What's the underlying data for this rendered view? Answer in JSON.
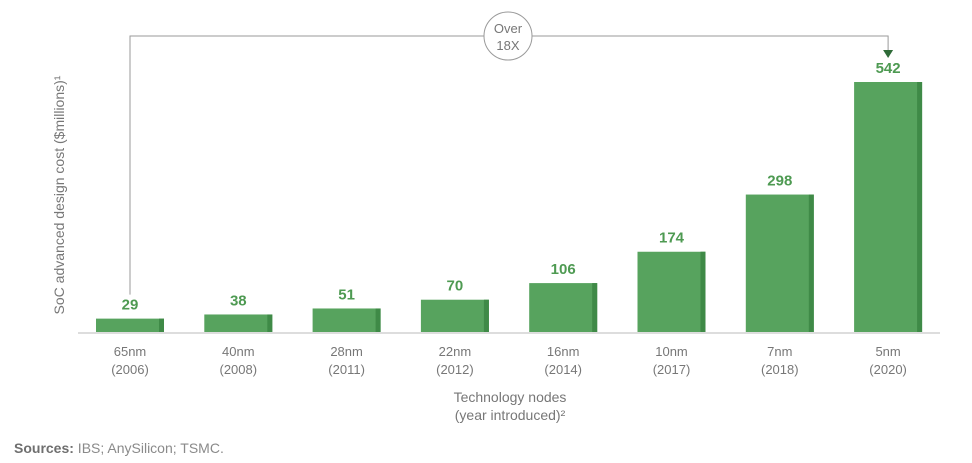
{
  "chart_data": {
    "type": "bar",
    "categories": [
      "65nm",
      "40nm",
      "28nm",
      "22nm",
      "16nm",
      "10nm",
      "7nm",
      "5nm"
    ],
    "category_years": [
      "(2006)",
      "(2008)",
      "(2011)",
      "(2012)",
      "(2014)",
      "(2017)",
      "(2018)",
      "(2020)"
    ],
    "values": [
      29,
      38,
      51,
      70,
      106,
      174,
      298,
      542
    ],
    "value_labels": [
      "29",
      "38",
      "51",
      "70",
      "106",
      "174",
      "298",
      "542"
    ],
    "ylabel": "SoC advanced design cost ($millions)¹",
    "xlabel_line1": "Technology nodes",
    "xlabel_line2": "(year introduced)²",
    "ylim": [
      0,
      542
    ],
    "annotation": {
      "line1": "Over",
      "line2": "18X",
      "from_category": "65nm",
      "to_category": "5nm"
    },
    "grid": false,
    "legend": "none"
  },
  "colors": {
    "bar": "#57a35e",
    "bar_shade": "#3f8a47",
    "value_label": "#4e9a52",
    "axis": "#bbbbbb",
    "text": "#777777",
    "annotation": "#9a9a9a",
    "arrow_head": "#2f6b38"
  },
  "sources": {
    "prefix": "Sources:",
    "text": " IBS; AnySilicon; TSMC."
  }
}
